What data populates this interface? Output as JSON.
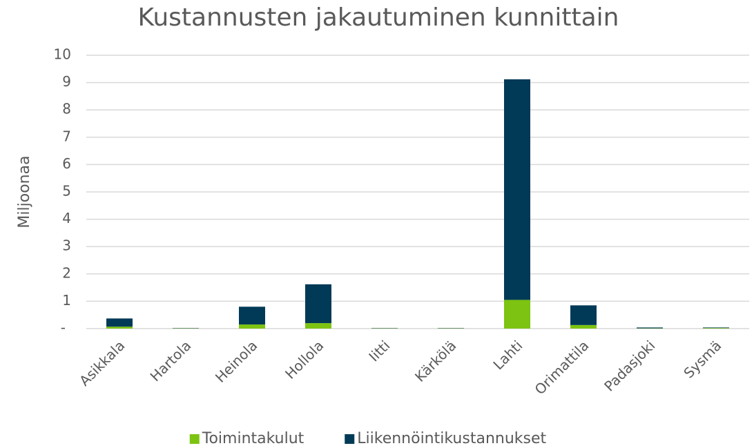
{
  "chart_data": {
    "type": "stacked_bar",
    "title": "Kustannusten jakautuminen kunnittain",
    "y_label": "Miljoonaa",
    "categories": [
      "Asikkala",
      "Hartola",
      "Heinola",
      "Hollola",
      "Iitti",
      "Kärkölä",
      "Lahti",
      "Orimattila",
      "Padasjoki",
      "Sysmä"
    ],
    "series": [
      {
        "name": "Toimintakulut",
        "color": "#7dc312",
        "values": [
          0.07,
          0.01,
          0.15,
          0.2,
          0.01,
          0.01,
          1.05,
          0.13,
          0.01,
          0.02
        ]
      },
      {
        "name": "Liikennöintikustannukset",
        "color": "#003a57",
        "values": [
          0.3,
          0.01,
          0.65,
          1.42,
          0.01,
          0.01,
          8.07,
          0.72,
          0.03,
          0.02
        ]
      }
    ],
    "ylim": [
      0,
      10
    ],
    "yticks": [
      {
        "value": 0,
        "label": "-"
      },
      1,
      2,
      3,
      4,
      5,
      6,
      7,
      8,
      9,
      10
    ],
    "grid": true,
    "legend": "bottom"
  }
}
